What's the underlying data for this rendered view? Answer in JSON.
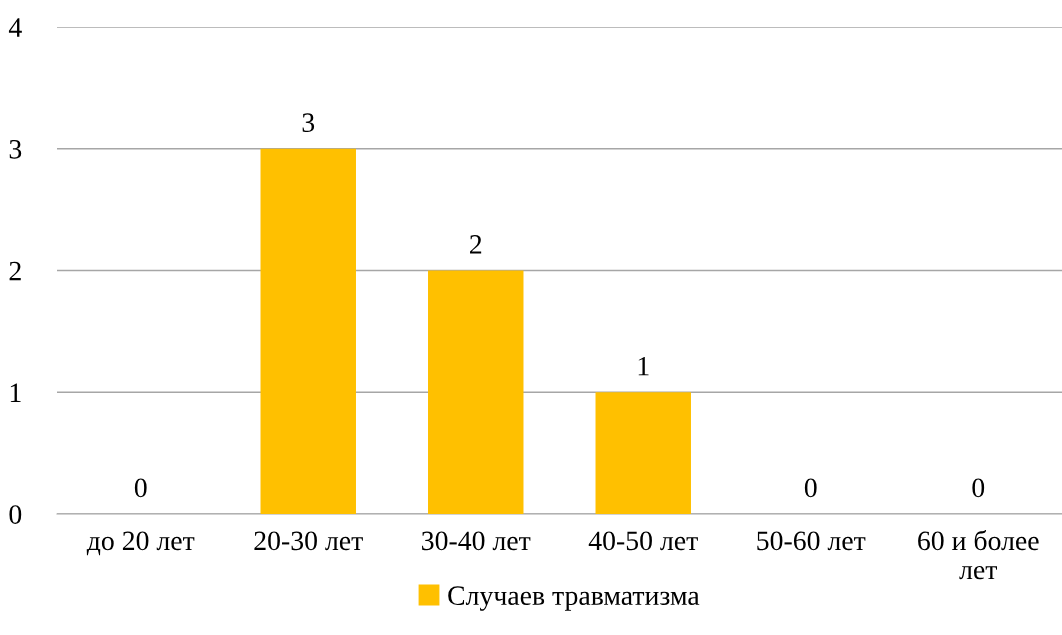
{
  "chart_data": {
    "type": "bar",
    "categories": [
      "до 20 лет",
      "20-30 лет",
      "30-40 лет",
      "40-50 лет",
      "50-60 лет",
      "60 и более\nлет"
    ],
    "series": [
      {
        "name": "Случаев травматизма",
        "color": "#ffc000",
        "values": [
          0,
          3,
          2,
          1,
          0,
          0
        ]
      }
    ],
    "ylim": [
      0,
      4
    ],
    "yticks": [
      0,
      1,
      2,
      3,
      4
    ],
    "grid": "y",
    "legend": "bottom",
    "data_labels": true
  }
}
